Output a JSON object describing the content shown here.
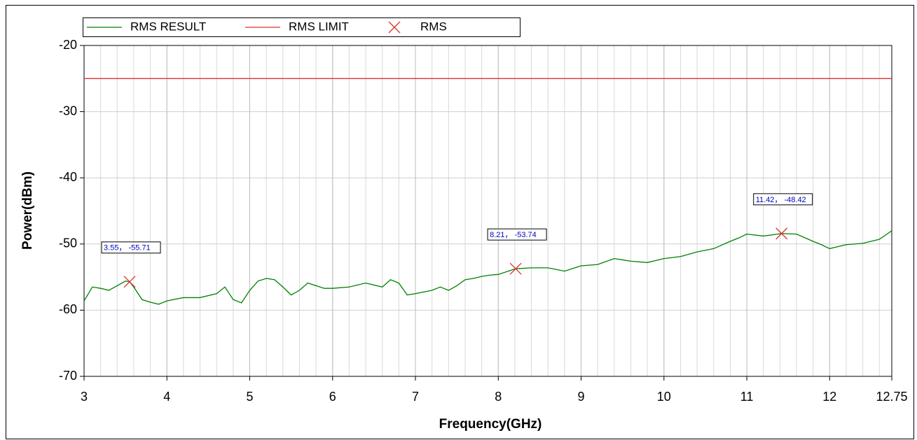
{
  "chart_data": {
    "type": "line",
    "xlabel": "Frequency(GHz)",
    "ylabel": "Power(dBm)",
    "xlim": [
      3,
      12.75
    ],
    "xticks": [
      3,
      4,
      5,
      6,
      7,
      8,
      9,
      10,
      11,
      12,
      12.75
    ],
    "ylim": [
      -70,
      -20
    ],
    "yticks": [
      -20,
      -30,
      -40,
      -50,
      -60,
      -70
    ],
    "grid": true,
    "minor_grid_step": 0.2,
    "legend": "top",
    "series": [
      {
        "name": "RMS RESULT",
        "color": "#008000",
        "type": "line",
        "x": [
          3,
          3.1,
          3.2,
          3.3,
          3.4,
          3.5,
          3.55,
          3.6,
          3.7,
          3.8,
          3.9,
          4.0,
          4.2,
          4.4,
          4.6,
          4.7,
          4.8,
          4.9,
          5.0,
          5.1,
          5.2,
          5.3,
          5.4,
          5.5,
          5.6,
          5.7,
          5.8,
          5.9,
          6.0,
          6.2,
          6.4,
          6.6,
          6.7,
          6.8,
          6.9,
          7.0,
          7.2,
          7.3,
          7.4,
          7.5,
          7.6,
          7.7,
          7.8,
          7.9,
          8.0,
          8.21,
          8.4,
          8.6,
          8.8,
          9.0,
          9.2,
          9.4,
          9.6,
          9.8,
          10.0,
          10.2,
          10.4,
          10.6,
          10.8,
          10.9,
          11.0,
          11.2,
          11.42,
          11.6,
          11.8,
          11.9,
          12.0,
          12.2,
          12.4,
          12.6,
          12.75
        ],
        "values": [
          -58.6,
          -56.5,
          -56.7,
          -57,
          -56.3,
          -55.6,
          -55.71,
          -56.5,
          -58.4,
          -58.8,
          -59.1,
          -58.6,
          -58.1,
          -58.1,
          -57.5,
          -56.5,
          -58.4,
          -58.9,
          -57,
          -55.6,
          -55.2,
          -55.4,
          -56.5,
          -57.7,
          -57,
          -55.9,
          -56.3,
          -56.7,
          -56.7,
          -56.5,
          -55.9,
          -56.5,
          -55.4,
          -55.9,
          -57.7,
          -57.5,
          -57,
          -56.5,
          -57,
          -56.3,
          -55.4,
          -55.2,
          -54.9,
          -54.7,
          -54.6,
          -53.74,
          -53.6,
          -53.6,
          -54.1,
          -53.3,
          -53.1,
          -52.2,
          -52.6,
          -52.8,
          -52.2,
          -51.9,
          -51.2,
          -50.7,
          -49.6,
          -49.1,
          -48.5,
          -48.8,
          -48.42,
          -48.5,
          -49.6,
          -50.1,
          -50.7,
          -50.1,
          -49.9,
          -49.3,
          -48
        ]
      },
      {
        "name": "RMS LIMIT",
        "color": "#e03030",
        "type": "line",
        "x": [
          3,
          12.75
        ],
        "values": [
          -25,
          -25
        ]
      },
      {
        "name": "RMS",
        "color": "#e03030",
        "type": "scatter",
        "x": [
          3.55,
          8.21,
          11.42
        ],
        "values": [
          -55.71,
          -53.74,
          -48.42
        ],
        "value_labels": [
          "3.55， -55.71",
          "8.21， -53.74",
          "11.42， -48.42"
        ]
      }
    ]
  }
}
